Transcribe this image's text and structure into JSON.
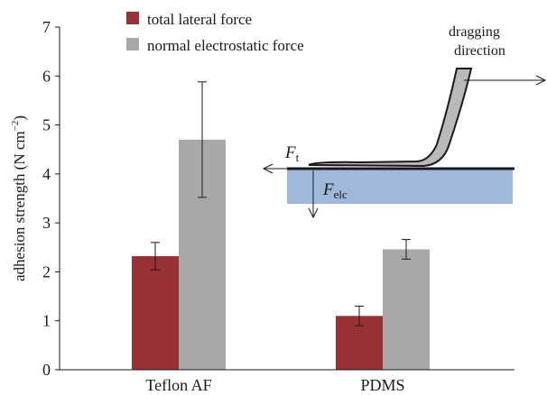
{
  "chart_data": {
    "type": "bar",
    "ylabel_main": "adhesion strength (N cm",
    "ylabel_sup": "−2",
    "ylabel_end": ")",
    "ylim": [
      0,
      7
    ],
    "yticks": [
      "0",
      "1",
      "2",
      "3",
      "4",
      "5",
      "6",
      "7"
    ],
    "categories": [
      "Teflon AF",
      "PDMS"
    ],
    "series": [
      {
        "name": "total lateral force",
        "color": "#963236",
        "values": [
          2.32,
          1.1
        ],
        "errors": [
          0.28,
          0.2
        ]
      },
      {
        "name": "normal electrostatic force",
        "color": "#a8a8a8",
        "values": [
          4.7,
          2.46
        ],
        "errors": [
          1.18,
          0.2
        ]
      }
    ],
    "legend": "top-left",
    "inset": {
      "dragging_label_line1": "dragging",
      "dragging_label_line2": "direction",
      "ft_main": "F",
      "ft_sub": "t",
      "felc_main": "F",
      "felc_sub": "elc",
      "substrate_color": "#9fb8db"
    }
  }
}
